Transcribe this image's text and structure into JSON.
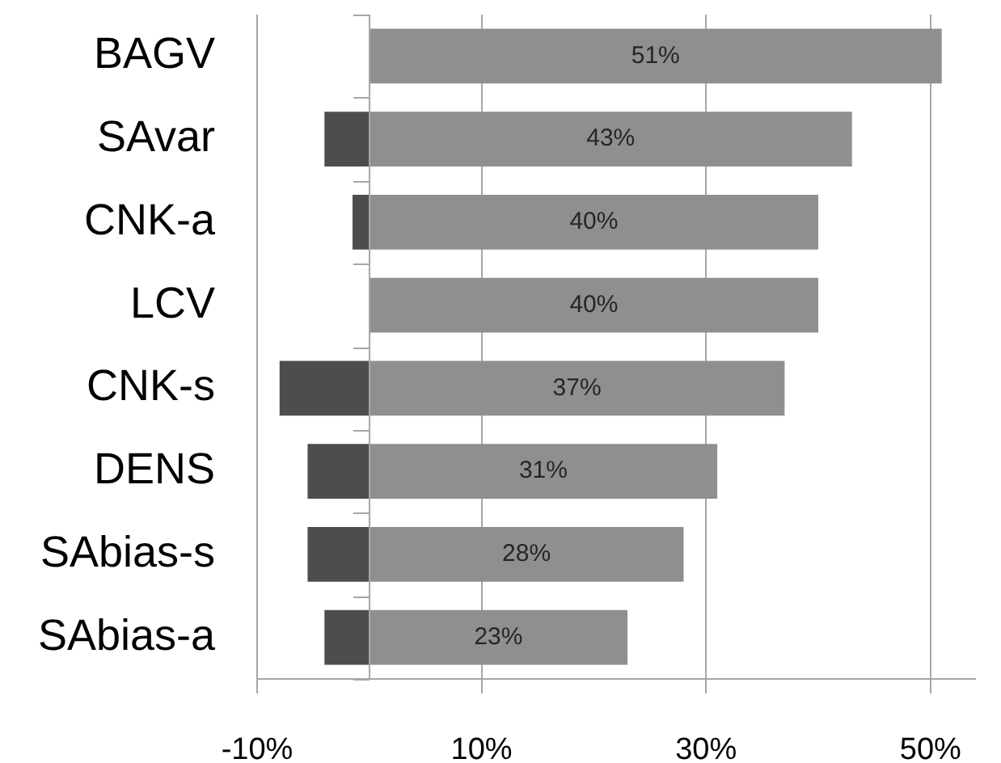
{
  "chart_data": {
    "type": "bar",
    "orientation": "horizontal",
    "stacked": true,
    "categories": [
      "BAGV",
      "SAvar",
      "CNK-a",
      "LCV",
      "CNK-s",
      "DENS",
      "SAbias-s",
      "SAbias-a"
    ],
    "series": [
      {
        "color": "#8f8f8f",
        "values": [
          51,
          43,
          40,
          40,
          37,
          31,
          28,
          23
        ],
        "value_labels": [
          "51%",
          "43%",
          "40%",
          "40%",
          "37%",
          "31%",
          "28%",
          "23%"
        ]
      },
      {
        "color": "#4d4d4d",
        "values": [
          null,
          -4,
          -1.5,
          null,
          -8,
          -5.5,
          -5.5,
          -4
        ]
      }
    ],
    "xlim": [
      -10,
      54
    ],
    "xticks": [
      {
        "value": -10,
        "label": "-10%"
      },
      {
        "value": 10,
        "label": "10%"
      },
      {
        "value": 30,
        "label": "30%"
      },
      {
        "value": 50,
        "label": "50%"
      }
    ],
    "grid": "x"
  }
}
